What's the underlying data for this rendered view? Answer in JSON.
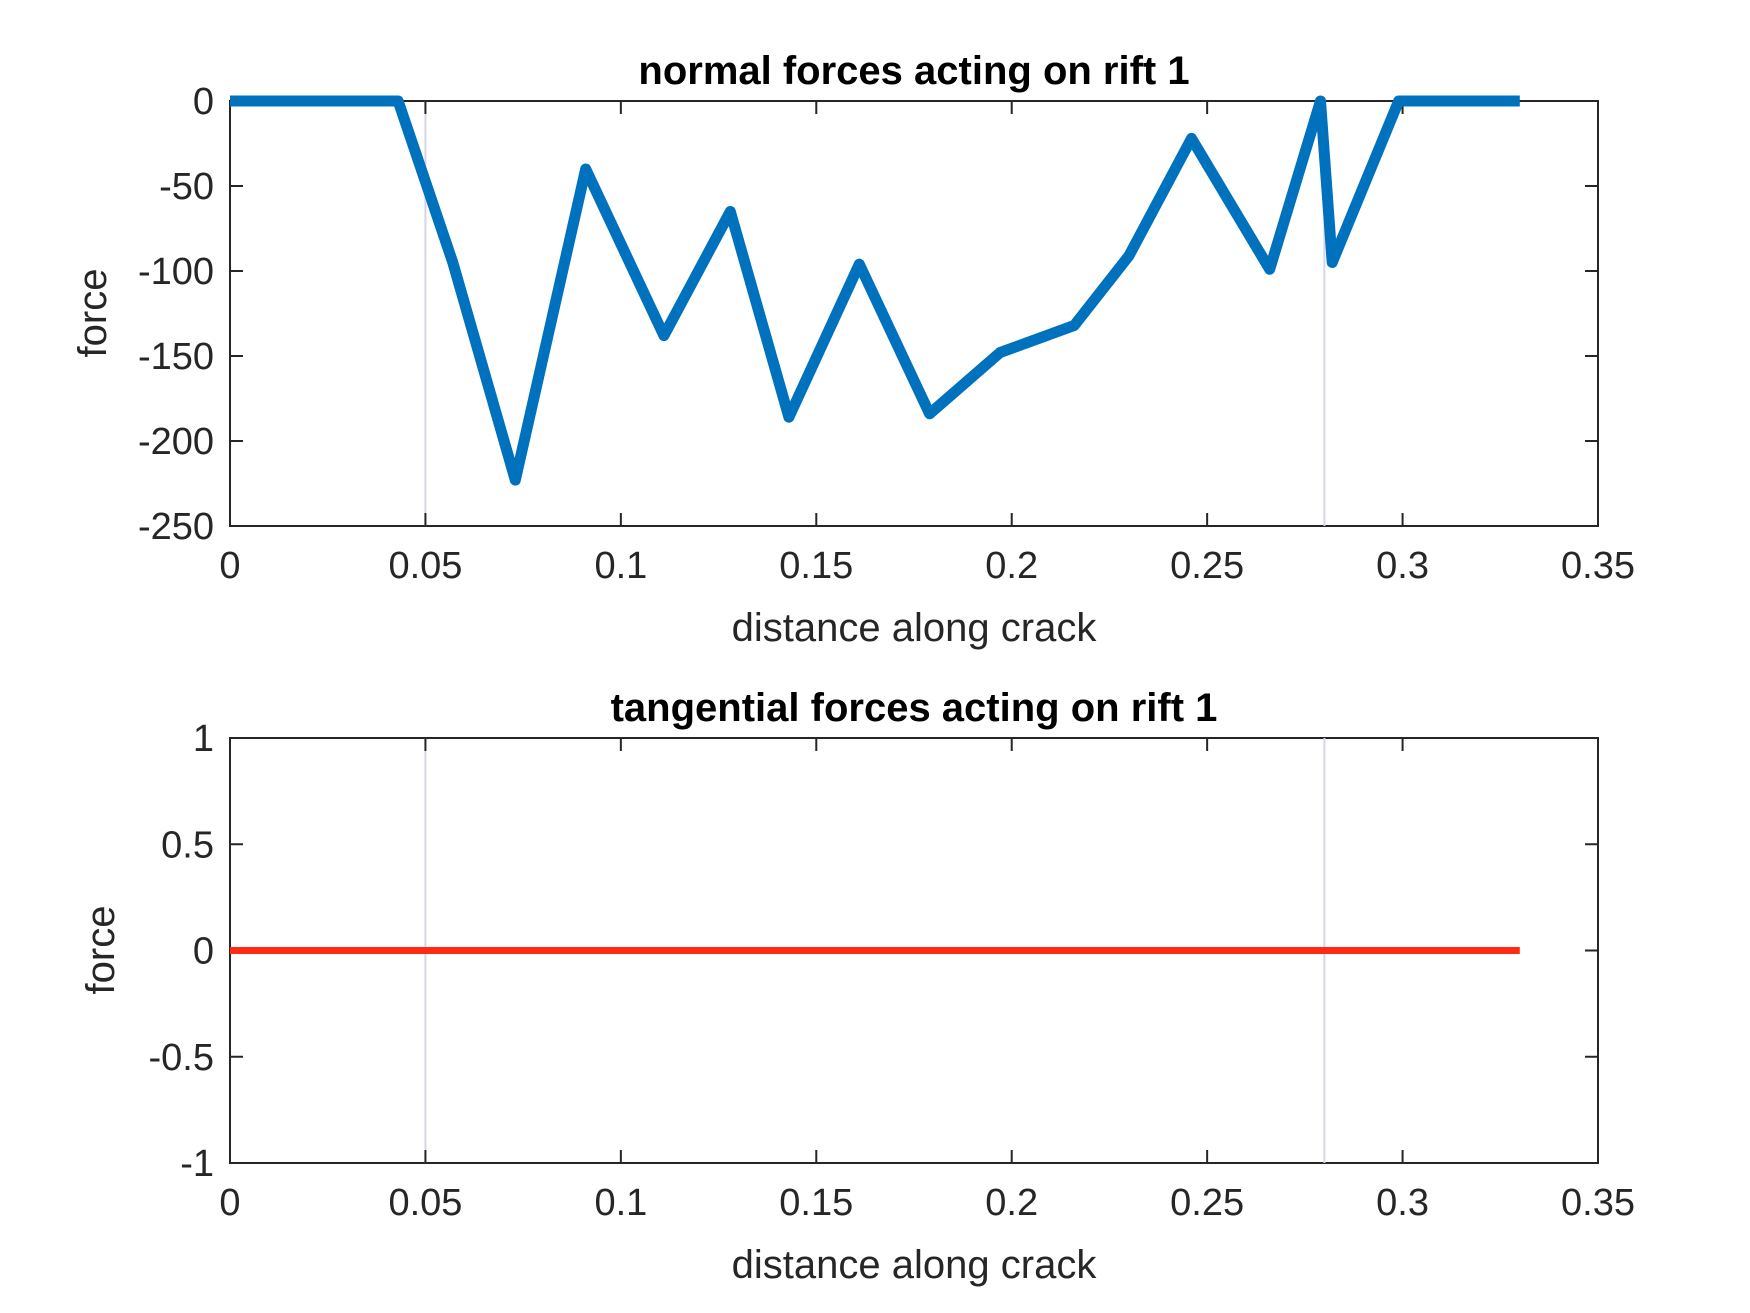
{
  "chart_data": [
    {
      "type": "line",
      "title": "normal forces acting on rift 1",
      "xlabel": "distance along crack",
      "ylabel": "force",
      "xlim": [
        0,
        0.35
      ],
      "ylim": [
        -250,
        0
      ],
      "xticks": [
        0,
        0.05,
        0.1,
        0.15,
        0.2,
        0.25,
        0.3,
        0.35
      ],
      "xtick_labels": [
        "0",
        "0.05",
        "0.1",
        "0.15",
        "0.2",
        "0.25",
        "0.3",
        "0.35"
      ],
      "yticks": [
        0,
        -50,
        -100,
        -150,
        -200,
        -250
      ],
      "ytick_labels": [
        "0",
        "-50",
        "-100",
        "-150",
        "-200",
        "-250"
      ],
      "grid": false,
      "reference_lines_x": [
        0.05,
        0.28
      ],
      "reference_line_color": "#d8d4e8",
      "series": [
        {
          "color": "#0072bd",
          "x": [
            0,
            0.035,
            0.043,
            0.057,
            0.073,
            0.091,
            0.111,
            0.128,
            0.143,
            0.161,
            0.179,
            0.197,
            0.216,
            0.23,
            0.246,
            0.266,
            0.279,
            0.282,
            0.299,
            0.33
          ],
          "y": [
            0,
            0,
            0,
            -95,
            -223,
            -40,
            -138,
            -65,
            -186,
            -96,
            -184,
            -148,
            -132,
            -91,
            -22,
            -99,
            0,
            -95,
            0,
            0
          ]
        }
      ]
    },
    {
      "type": "line",
      "title": "tangential forces acting on rift 1",
      "xlabel": "distance along crack",
      "ylabel": "force",
      "xlim": [
        0,
        0.35
      ],
      "ylim": [
        -1,
        1
      ],
      "xticks": [
        0,
        0.05,
        0.1,
        0.15,
        0.2,
        0.25,
        0.3,
        0.35
      ],
      "xtick_labels": [
        "0",
        "0.05",
        "0.1",
        "0.15",
        "0.2",
        "0.25",
        "0.3",
        "0.35"
      ],
      "yticks": [
        1,
        0.5,
        0,
        -0.5,
        -1
      ],
      "ytick_labels": [
        "1",
        "0.5",
        "0",
        "-0.5",
        "-1"
      ],
      "grid": false,
      "reference_lines_x": [
        0.05,
        0.28
      ],
      "reference_line_color": "#d8d4e8",
      "series": [
        {
          "color": "#ff2a12",
          "x": [
            0,
            0.33
          ],
          "y": [
            0,
            0
          ]
        }
      ]
    }
  ]
}
